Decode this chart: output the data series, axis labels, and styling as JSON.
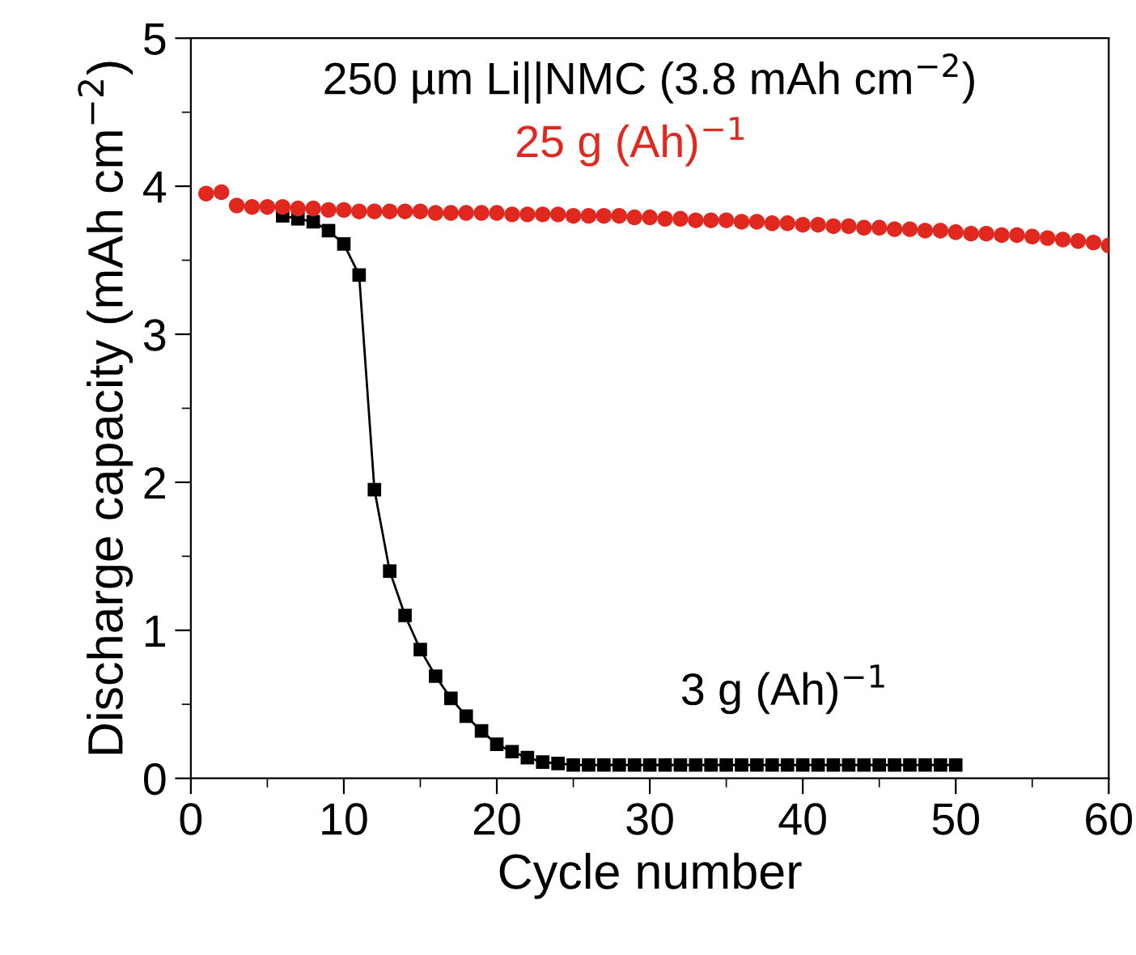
{
  "chart_data": {
    "type": "line",
    "xlabel": "Cycle number",
    "ylabel": "Discharge capacity (mAh cm$^{−2}$)",
    "annotations": [
      "250 µm Li||NMC (3.8 mAh cm$^{−2}$)"
    ],
    "xlim": [
      0,
      60
    ],
    "xticks": [
      0,
      10,
      20,
      30,
      40,
      50,
      60
    ],
    "ylim": [
      0,
      5
    ],
    "yticks": [
      0,
      1,
      2,
      3,
      4,
      5
    ],
    "grid": false,
    "legend": false,
    "line_style": "solid",
    "series": [
      {
        "name": "3 g (Ah)$^{−1}$",
        "color": "#000000",
        "marker": "square",
        "x": [
          6,
          7,
          8,
          9,
          10,
          11,
          12,
          13,
          14,
          15,
          16,
          17,
          18,
          19,
          20,
          21,
          22,
          23,
          24,
          25,
          26,
          27,
          28,
          29,
          30,
          31,
          32,
          33,
          34,
          35,
          36,
          37,
          38,
          39,
          40,
          41,
          42,
          43,
          44,
          45,
          46,
          47,
          48,
          49,
          50
        ],
        "values": [
          3.8,
          3.78,
          3.76,
          3.7,
          3.61,
          3.4,
          1.95,
          1.4,
          1.1,
          0.87,
          0.69,
          0.54,
          0.42,
          0.32,
          0.23,
          0.18,
          0.14,
          0.11,
          0.1,
          0.09,
          0.09,
          0.09,
          0.09,
          0.09,
          0.09,
          0.09,
          0.09,
          0.09,
          0.09,
          0.09,
          0.09,
          0.09,
          0.09,
          0.09,
          0.09,
          0.09,
          0.09,
          0.09,
          0.09,
          0.09,
          0.09,
          0.09,
          0.09,
          0.09,
          0.09
        ]
      },
      {
        "name": "25 g (Ah)$^{−1}$",
        "type": "scatter",
        "color": "#e0281e",
        "marker": "circle",
        "x": [
          1,
          2,
          3,
          4,
          5,
          6,
          7,
          8,
          9,
          10,
          11,
          12,
          13,
          14,
          15,
          16,
          17,
          18,
          19,
          20,
          21,
          22,
          23,
          24,
          25,
          26,
          27,
          28,
          29,
          30,
          31,
          32,
          33,
          34,
          35,
          36,
          37,
          38,
          39,
          40,
          41,
          42,
          43,
          44,
          45,
          46,
          47,
          48,
          49,
          50,
          51,
          52,
          53,
          54,
          55,
          56,
          57,
          58,
          59,
          60
        ],
        "values": [
          3.95,
          3.96,
          3.87,
          3.86,
          3.86,
          3.86,
          3.85,
          3.85,
          3.84,
          3.84,
          3.83,
          3.83,
          3.83,
          3.83,
          3.83,
          3.82,
          3.82,
          3.82,
          3.82,
          3.82,
          3.81,
          3.81,
          3.81,
          3.81,
          3.8,
          3.8,
          3.8,
          3.8,
          3.79,
          3.79,
          3.78,
          3.78,
          3.77,
          3.77,
          3.77,
          3.76,
          3.76,
          3.75,
          3.75,
          3.74,
          3.74,
          3.73,
          3.73,
          3.72,
          3.72,
          3.71,
          3.71,
          3.7,
          3.7,
          3.69,
          3.68,
          3.68,
          3.67,
          3.67,
          3.66,
          3.65,
          3.64,
          3.63,
          3.62,
          3.6
        ]
      }
    ]
  }
}
